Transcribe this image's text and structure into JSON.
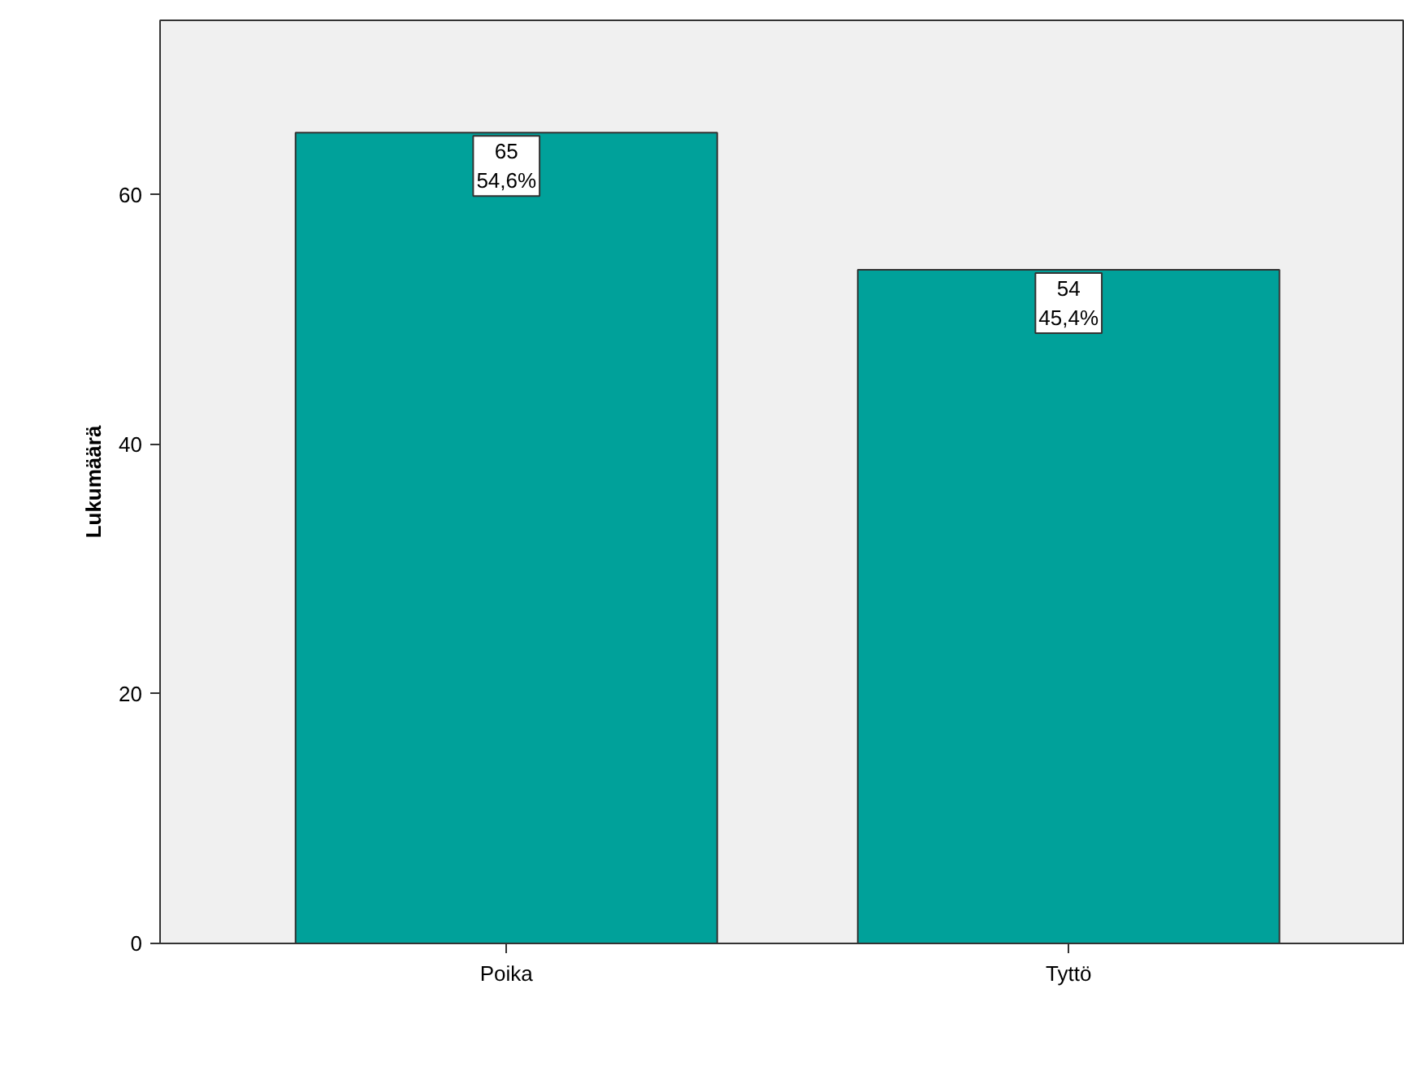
{
  "chart_data": {
    "type": "bar",
    "ylabel": "Lukumäärä",
    "categories": [
      "Poika",
      "Tyttö"
    ],
    "values": [
      65,
      54
    ],
    "value_labels": [
      "65\n54,6%",
      "54\n45,4%"
    ],
    "color": "#00a19a",
    "ylim": [
      0,
      74
    ],
    "yticks": [
      0,
      20,
      40,
      60
    ],
    "grid": false
  }
}
